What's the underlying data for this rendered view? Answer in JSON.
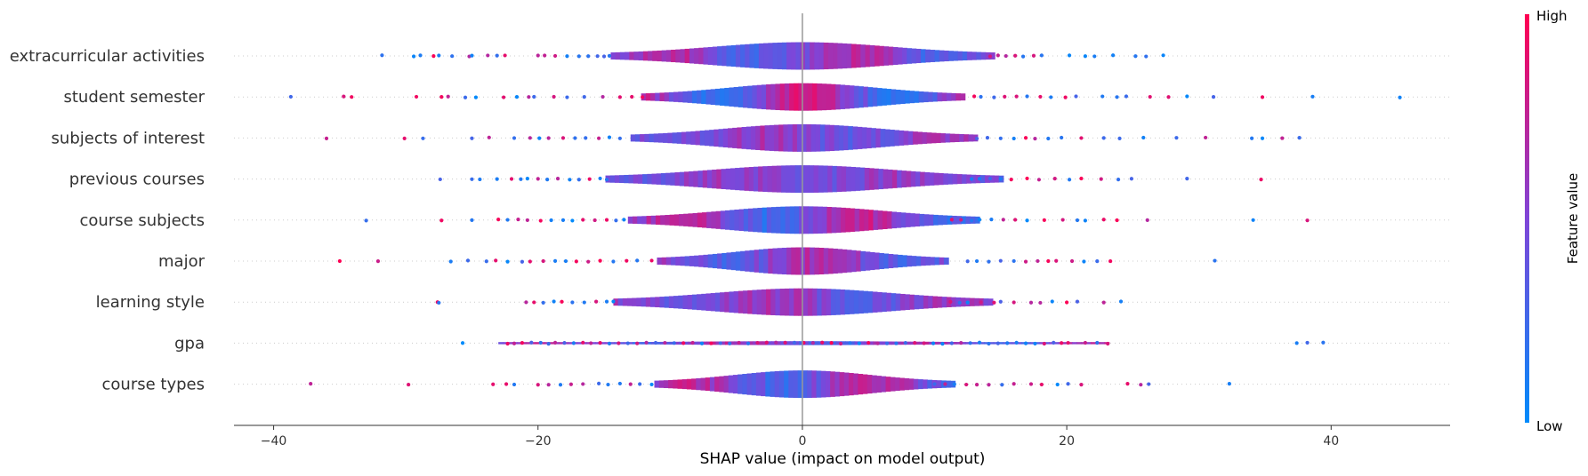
{
  "chart_data": {
    "type": "violin",
    "xlabel": "SHAP value (impact on model output)",
    "ylabel": "",
    "xlim": [
      -43,
      49
    ],
    "x_ticks": [
      -40,
      -20,
      0,
      20,
      40
    ],
    "x_tick_labels": [
      "−40",
      "−20",
      "0",
      "20",
      "40"
    ],
    "colorbar": {
      "label": "Feature value",
      "high_label": "High",
      "low_label": "Low",
      "high_color": "#ff0052",
      "low_color": "#008bfb"
    },
    "features": [
      {
        "name": "extracurricular activities",
        "min": -31.8,
        "max": 27.3,
        "spread": 14.5,
        "lean": 0.6,
        "high_side": "both",
        "points": [
          -31.8,
          -29.4,
          -28.9,
          -27.9,
          -27.5,
          -26.5,
          -25.2,
          -25,
          -23.8,
          -23.1,
          -22.5,
          -20,
          -19.5,
          -18.7,
          -17.8,
          -16.9,
          -16.2,
          -15.5,
          -15,
          -14.6,
          14.2,
          14.8,
          15.4,
          16.1,
          16.7,
          17.5,
          18.1,
          20.2,
          21.4,
          22.1,
          23.5,
          25.2,
          26,
          27.3
        ]
      },
      {
        "name": "student semester",
        "min": -38.7,
        "max": 45.2,
        "spread": 12.2,
        "lean": 0.9,
        "high_side": "left",
        "points": [
          -38.7,
          -34.7,
          -34.1,
          -29.2,
          -27.3,
          -26.8,
          -25.5,
          -24.7,
          -22.6,
          -21.6,
          -20.7,
          -20.3,
          -18.8,
          -17.8,
          -16.5,
          -15.1,
          -13.8,
          -12.9,
          -12.1,
          13,
          13.5,
          14.5,
          15.3,
          16.2,
          17,
          18,
          18.8,
          19.9,
          20.7,
          22.7,
          23.8,
          24.5,
          26.3,
          27.7,
          29.1,
          31.1,
          34.8,
          38.6,
          45.2
        ]
      },
      {
        "name": "subjects of interest",
        "min": -36,
        "max": 37.6,
        "spread": 13,
        "lean": 0.3,
        "high_side": "both",
        "points": [
          -36,
          -30.1,
          -28.7,
          -25,
          -23.7,
          -21.8,
          -20.6,
          -19.9,
          -19.2,
          -18.1,
          -17.2,
          -16.4,
          -15.4,
          -14.6,
          -13.8,
          13.2,
          14,
          15,
          16,
          16.9,
          17.6,
          18.6,
          19.6,
          21.1,
          22.8,
          24,
          25.8,
          28.3,
          30.5,
          34,
          34.8,
          36.3,
          37.6
        ]
      },
      {
        "name": "previous courses",
        "min": -27.4,
        "max": 34.7,
        "spread": 14.9,
        "lean": 0.2,
        "high_side": "both",
        "points": [
          -27.4,
          -25,
          -24.4,
          -23.1,
          -22,
          -21.3,
          -20.8,
          -20,
          -19.3,
          -18.5,
          -17.6,
          -16.9,
          -16.1,
          -15.3,
          -14.8,
          12.8,
          13.4,
          14.2,
          15,
          15.8,
          17,
          17.9,
          19.1,
          20.2,
          21.1,
          22.6,
          23.9,
          24.9,
          29.1,
          34.7
        ]
      },
      {
        "name": "course subjects",
        "min": -33,
        "max": 38.2,
        "spread": 13.2,
        "lean": 0.7,
        "high_side": "both",
        "points": [
          -33,
          -27.3,
          -25,
          -23,
          -22.3,
          -21.5,
          -20.8,
          -19.8,
          -19,
          -18.1,
          -17.4,
          -16.6,
          -15.7,
          -14.8,
          -14.1,
          -13.5,
          11.3,
          12,
          12.8,
          13.4,
          14.3,
          15.2,
          16.1,
          17,
          18.3,
          19.7,
          20.8,
          21.4,
          22.8,
          23.8,
          26.1,
          34.1,
          38.2
        ]
      },
      {
        "name": "major",
        "min": -35,
        "max": 31.2,
        "spread": 11,
        "lean": 0.5,
        "high_side": "both",
        "points": [
          -35,
          -32.1,
          -26.6,
          -25.3,
          -23.9,
          -23.2,
          -22.3,
          -21.2,
          -20.6,
          -19.6,
          -18.7,
          -17.9,
          -17.1,
          -16.2,
          -15.3,
          -14.3,
          -13.3,
          -12.5,
          -11.4,
          12.5,
          13.2,
          14.1,
          15,
          16,
          16.9,
          17.8,
          18.6,
          19.2,
          20.4,
          21.3,
          22.3,
          23.3,
          31.2
        ]
      },
      {
        "name": "learning style",
        "min": -27.6,
        "max": 24.1,
        "spread": 14.3,
        "lean": 0.3,
        "high_side": "both",
        "points": [
          -27.6,
          -27.5,
          -20.9,
          -20.3,
          -19.6,
          -18.8,
          -18.2,
          -17.4,
          -16.5,
          -15.6,
          -14.8,
          -14.3,
          11.2,
          11.9,
          12.5,
          13.5,
          14.5,
          15,
          16,
          17.3,
          18,
          18.9,
          20,
          20.8,
          22.8,
          24.1
        ]
      },
      {
        "name": "gpa",
        "min": -25.7,
        "max": 39.4,
        "spread": 23,
        "lean": 0.5,
        "high_side": "both",
        "thin": true,
        "points": [
          -25.7,
          -22.3,
          -21.8,
          -21.2,
          -20.5,
          -19.8,
          -19.2,
          -18.7,
          -18,
          -17.3,
          -16.6,
          -16,
          -15.3,
          -14.6,
          -13.9,
          -13.2,
          -12.5,
          -11.8,
          -11.1,
          -10.4,
          -9.7,
          -9,
          -8.3,
          -7.6,
          -6.9,
          -6.2,
          -5.5,
          -4.8,
          -4.1,
          -3.4,
          -2.7,
          -2,
          -1.3,
          -0.6,
          0.1,
          0.8,
          1.5,
          2.2,
          2.9,
          3.6,
          4.3,
          5,
          5.7,
          6.4,
          7.1,
          7.8,
          8.5,
          9.2,
          9.9,
          10.6,
          11.3,
          12,
          12.7,
          13.4,
          14.1,
          14.8,
          15.5,
          16.2,
          16.9,
          17.6,
          18.3,
          19,
          19.6,
          20.1,
          21.4,
          22.3,
          23.1,
          37.4,
          38.2,
          39.4
        ]
      },
      {
        "name": "course types",
        "min": -37.2,
        "max": 32.3,
        "spread": 11.2,
        "lean": 0.6,
        "high_side": "both",
        "points": [
          -37.2,
          -29.8,
          -23.4,
          -22.4,
          -21.8,
          -20,
          -19.2,
          -18.3,
          -17.5,
          -16.6,
          -15.4,
          -14.7,
          -13.8,
          -13,
          -12.3,
          -11.4,
          10,
          10.8,
          11.5,
          12.4,
          13.2,
          14.1,
          15.1,
          16,
          17.3,
          18.1,
          19.3,
          20.1,
          21.1,
          24.6,
          25.6,
          26.2,
          32.3
        ]
      }
    ]
  }
}
